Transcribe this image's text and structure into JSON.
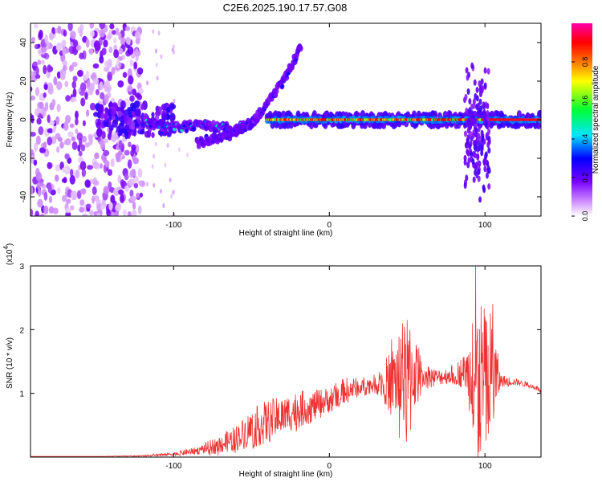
{
  "title": "C2E6.2025.190.17.57.G08",
  "chart_data": [
    {
      "type": "heatmap",
      "xlabel": "Height of straight line (km)",
      "ylabel": "Frequency (Hz)",
      "xlim": [
        -192,
        136
      ],
      "ylim": [
        -50,
        50
      ],
      "x_ticks": [
        -100,
        0,
        100
      ],
      "y_ticks": [
        -40,
        -20,
        0,
        20,
        40
      ],
      "grid": false,
      "colorbar": {
        "label": "Normalized spectral amplitude",
        "range": [
          0,
          1
        ],
        "ticks": [
          0.0,
          0.2,
          0.4,
          0.6,
          0.8
        ],
        "tick_labels": [
          "0.0",
          "0.2",
          "0.4",
          "0.6",
          "0.8"
        ],
        "colors": [
          "#ffffff",
          "#cc88ff",
          "#7700ff",
          "#0000ff",
          "#00e5ff",
          "#00ff33",
          "#ffff00",
          "#ff7700",
          "#ff0000",
          "#ff00aa"
        ]
      },
      "features": [
        {
          "name": "scattered noise",
          "x_range": [
            -192,
            -120
          ],
          "freq_range": [
            -50,
            50
          ],
          "amplitude": 0.15
        },
        {
          "name": "onset band",
          "x_range": [
            -150,
            -100
          ],
          "freq_range": [
            -8,
            8
          ],
          "amplitude": 0.3
        },
        {
          "name": "low-height band",
          "x": [
            -120,
            -100,
            -80,
            -60,
            -45
          ],
          "freq": [
            -1,
            -4,
            -3,
            -5,
            1
          ],
          "amplitude": 0.4
        },
        {
          "name": "rising branch",
          "x": [
            -85,
            -65,
            -50,
            -40,
            -28,
            -18
          ],
          "freq": [
            -12,
            -8,
            -2,
            8,
            22,
            38
          ],
          "amplitude": 0.25
        },
        {
          "name": "main carrier line",
          "x": [
            -40,
            136
          ],
          "freq": [
            0,
            0
          ],
          "amplitude": 0.95
        },
        {
          "name": "burst",
          "x": 95,
          "freq_range": [
            -45,
            30
          ],
          "amplitude": 0.35
        }
      ]
    },
    {
      "type": "line",
      "xlabel": "Height of straight line (km)",
      "ylabel": "SNR (10 * v/v)",
      "scale_label": "(x10^4)",
      "scale_base": "x10",
      "scale_exp": "4",
      "xlim": [
        -192,
        136
      ],
      "ylim": [
        0,
        3
      ],
      "x_ticks": [
        -100,
        0,
        100
      ],
      "y_ticks": [
        1,
        2,
        3
      ],
      "color": "#ee3333",
      "grid": false,
      "envelope": {
        "x": [
          -192,
          -150,
          -120,
          -100,
          -85,
          -70,
          -60,
          -50,
          -40,
          -30,
          -20,
          -10,
          0,
          10,
          20,
          30,
          40,
          45,
          50,
          55,
          60,
          70,
          80,
          88,
          95,
          100,
          105,
          110,
          120,
          130,
          136
        ],
        "level": [
          0.01,
          0.01,
          0.02,
          0.05,
          0.1,
          0.2,
          0.3,
          0.45,
          0.55,
          0.65,
          0.75,
          0.8,
          0.9,
          1.05,
          1.1,
          1.15,
          1.2,
          1.25,
          1.2,
          1.35,
          1.3,
          1.25,
          1.3,
          1.35,
          1.2,
          1.2,
          1.25,
          1.2,
          1.18,
          1.12,
          1.05
        ],
        "jitter": [
          0.0,
          0.0,
          0.01,
          0.03,
          0.06,
          0.15,
          0.2,
          0.3,
          0.35,
          0.3,
          0.3,
          0.25,
          0.2,
          0.2,
          0.15,
          0.15,
          0.5,
          0.8,
          0.9,
          0.6,
          0.2,
          0.12,
          0.15,
          0.3,
          1.3,
          1.3,
          1.0,
          0.1,
          0.05,
          0.04,
          0.04
        ]
      },
      "peaks": [
        {
          "x": 40,
          "y": 1.85
        },
        {
          "x": 47,
          "y": 2.1
        },
        {
          "x": 50,
          "y": 2.15
        },
        {
          "x": 92,
          "y": 2.1
        },
        {
          "x": 94,
          "y": 3.0
        },
        {
          "x": 100,
          "y": 2.2
        },
        {
          "x": 105,
          "y": 2.4
        }
      ]
    }
  ]
}
